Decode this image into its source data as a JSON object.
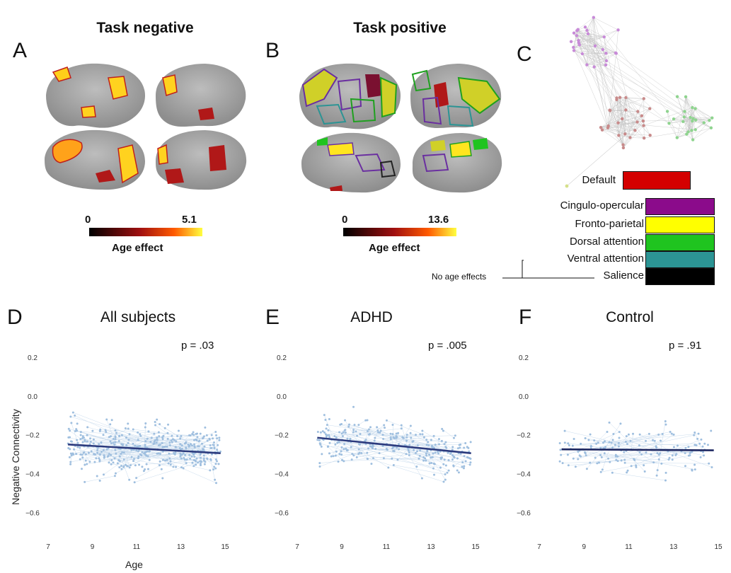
{
  "panels": {
    "a": {
      "letter": "A",
      "title": "Task negative",
      "colorbar": {
        "min": "0",
        "max": "5.1",
        "label": "Age effect"
      }
    },
    "b": {
      "letter": "B",
      "title": "Task positive",
      "colorbar": {
        "min": "0",
        "max": "13.6",
        "label": "Age effect"
      }
    },
    "c": {
      "letter": "C",
      "default_label": "Default",
      "legend": [
        {
          "label": "Cingulo-opercular",
          "color": "#8b0b8b"
        },
        {
          "label": "Fronto-parietal",
          "color": "#ffff00"
        },
        {
          "label": "Dorsal attention",
          "color": "#1fc41f"
        },
        {
          "label": "Ventral attention",
          "color": "#2c9494"
        },
        {
          "label": "Salience",
          "color": "#000000"
        }
      ],
      "default_color": "#d40000",
      "no_age_effects": "No age effects"
    },
    "d": {
      "letter": "D",
      "title": "All subjects",
      "p": "p = .03"
    },
    "e": {
      "letter": "E",
      "title": "ADHD",
      "p": "p = .005"
    },
    "f": {
      "letter": "F",
      "title": "Control",
      "p": "p = .91"
    }
  },
  "axes": {
    "xlabel": "Age",
    "ylabel": "Negative Connectivity"
  },
  "chart_data": [
    {
      "type": "scatter",
      "title": "All subjects",
      "annotation": "p = .03",
      "xlabel": "Age",
      "ylabel": "Negative Connectivity",
      "xlim": [
        7,
        15
      ],
      "ylim": [
        -0.65,
        0.2
      ],
      "xticks": [
        7,
        9,
        11,
        13,
        15
      ],
      "yticks": [
        0.2,
        0.0,
        -0.2,
        -0.4,
        -0.6
      ],
      "ytick_labels": [
        "0.2",
        "0.0",
        "−0.2",
        "−0.4",
        "−0.6"
      ],
      "fit_line": {
        "x": [
          7.9,
          14.8
        ],
        "y": [
          -0.25,
          -0.295
        ]
      },
      "point_color": "#9fbfdf",
      "line_color": "#2b3a7d"
    },
    {
      "type": "scatter",
      "title": "ADHD",
      "annotation": "p = .005",
      "xlim": [
        7,
        15
      ],
      "ylim": [
        -0.65,
        0.2
      ],
      "xticks": [
        7,
        9,
        11,
        13,
        15
      ],
      "yticks": [
        0.2,
        0.0,
        -0.2,
        -0.4,
        -0.6
      ],
      "ytick_labels": [
        "0.2",
        "0.0",
        "−0.2",
        "−0.4",
        "−0.6"
      ],
      "fit_line": {
        "x": [
          7.9,
          14.8
        ],
        "y": [
          -0.215,
          -0.295
        ]
      },
      "point_color": "#9fbfdf",
      "line_color": "#2b3a7d"
    },
    {
      "type": "scatter",
      "title": "Control",
      "annotation": "p = .91",
      "xlim": [
        7,
        15
      ],
      "ylim": [
        -0.65,
        0.2
      ],
      "xticks": [
        7,
        9,
        11,
        13,
        15
      ],
      "yticks": [
        0.2,
        0.0,
        -0.2,
        -0.4,
        -0.6
      ],
      "ytick_labels": [
        "0.2",
        "0.0",
        "−0.2",
        "−0.4",
        "−0.6"
      ],
      "fit_line": {
        "x": [
          8.0,
          14.8
        ],
        "y": [
          -0.275,
          -0.28
        ]
      },
      "point_color": "#9fbfdf",
      "line_color": "#1c2660"
    }
  ]
}
